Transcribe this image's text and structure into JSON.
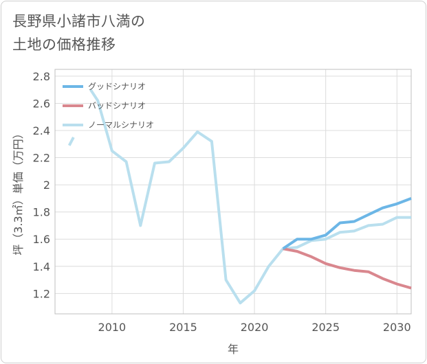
{
  "title_lines": [
    "長野県小諸市八満の",
    "土地の価格推移"
  ],
  "chart_data": {
    "type": "line",
    "xlabel": "年",
    "ylabel": "坪（3.3㎡）単価（万円）",
    "xlim": [
      2006,
      2031
    ],
    "ylim": [
      1.05,
      2.85
    ],
    "x_ticks": [
      2010,
      2015,
      2020,
      2025,
      2030
    ],
    "y_ticks": [
      1.2,
      1.4,
      1.6,
      1.8,
      2,
      2.2,
      2.4,
      2.6,
      2.8
    ],
    "y_tick_labels": [
      "1.2",
      "1.4",
      "1.6",
      "1.8",
      "2",
      "2.2",
      "2.4",
      "2.6",
      "2.8"
    ],
    "grid": true,
    "legend_position": "top-left",
    "series": [
      {
        "name": "グッドシナリオ",
        "color": "#6cb6e6",
        "x": [
          2022,
          2023,
          2024,
          2025,
          2026,
          2027,
          2028,
          2029,
          2030,
          2031
        ],
        "y": [
          1.53,
          1.6,
          1.6,
          1.63,
          1.72,
          1.73,
          1.78,
          1.83,
          1.86,
          1.9
        ]
      },
      {
        "name": "バッドシナリオ",
        "color": "#d9878e",
        "x": [
          2022,
          2023,
          2024,
          2025,
          2026,
          2027,
          2028,
          2029,
          2030,
          2031
        ],
        "y": [
          1.53,
          1.51,
          1.47,
          1.42,
          1.39,
          1.37,
          1.36,
          1.31,
          1.27,
          1.24
        ]
      },
      {
        "name": "ノーマルシナリオ",
        "color": "#b9dfee",
        "x": [
          2022,
          2023,
          2024,
          2025,
          2026,
          2027,
          2028,
          2029,
          2030,
          2031
        ],
        "y": [
          1.53,
          1.54,
          1.59,
          1.6,
          1.65,
          1.66,
          1.7,
          1.71,
          1.76,
          1.76
        ]
      }
    ],
    "history": {
      "color": "#b9dfee",
      "segments": [
        {
          "x": [
            2007,
            2007.3
          ],
          "y": [
            2.29,
            2.35
          ]
        },
        {
          "x": [
            2008.5,
            2009,
            2010,
            2011,
            2012,
            2013,
            2014,
            2015,
            2016,
            2017,
            2018,
            2019,
            2020,
            2021,
            2022
          ],
          "y": [
            2.7,
            2.62,
            2.25,
            2.17,
            1.7,
            2.16,
            2.17,
            2.27,
            2.39,
            2.32,
            1.3,
            1.13,
            1.22,
            1.4,
            1.53
          ]
        }
      ]
    }
  }
}
